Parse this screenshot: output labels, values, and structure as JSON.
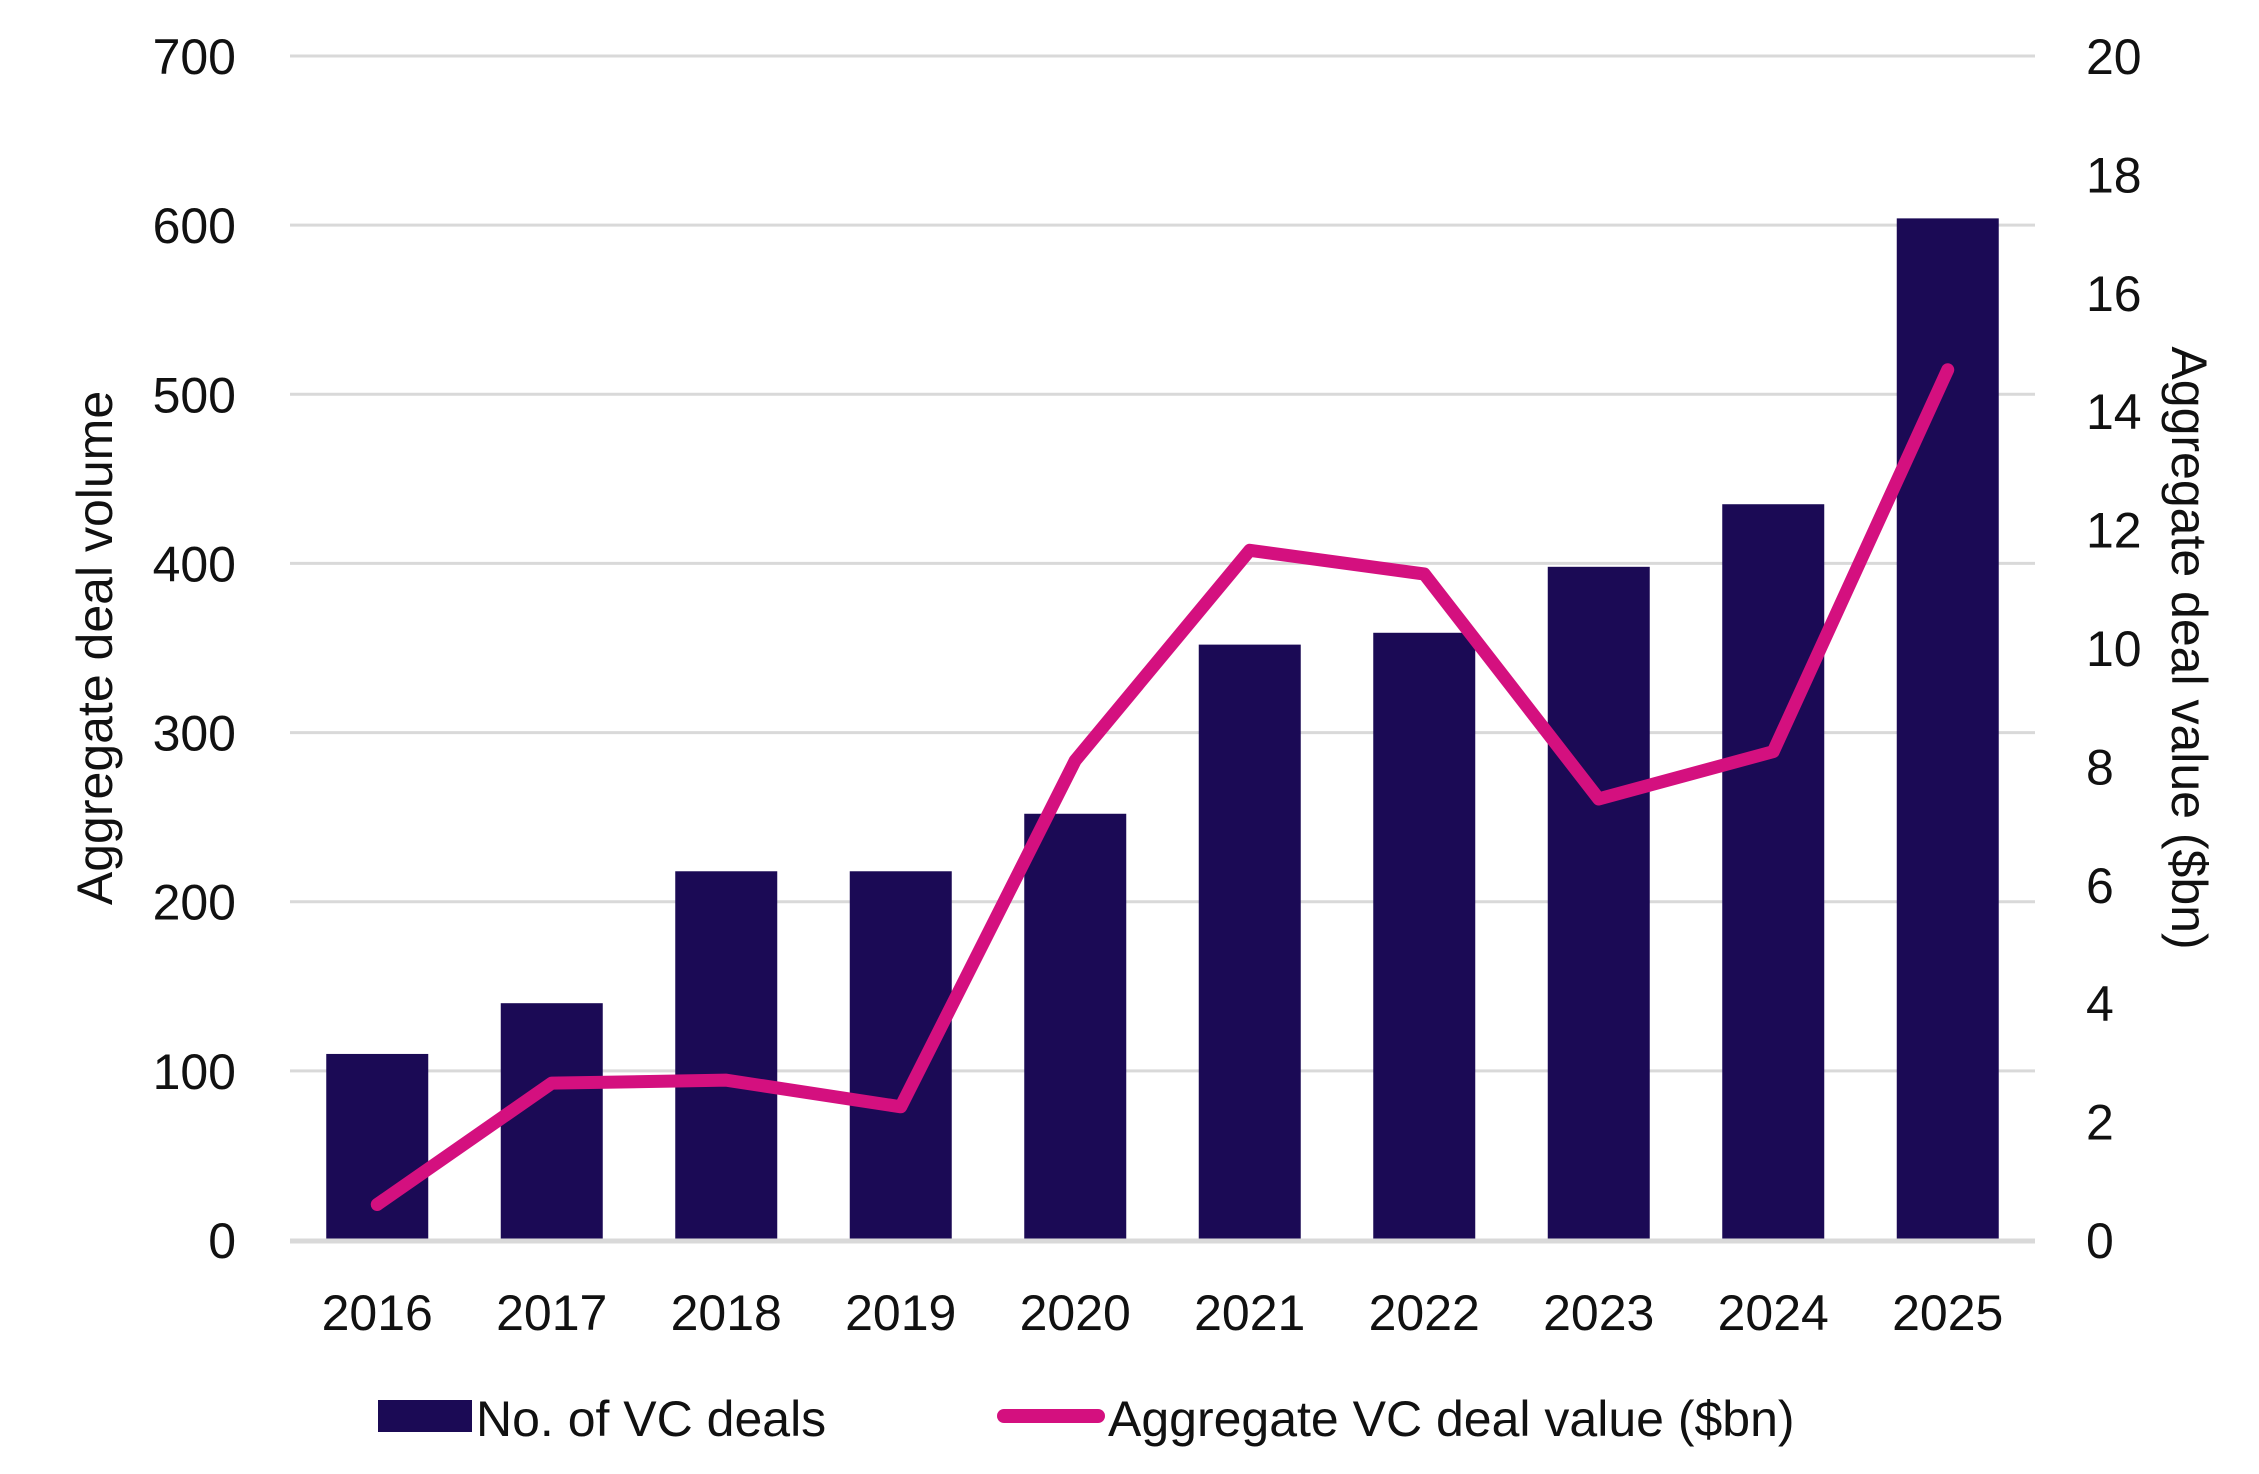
{
  "chart_data": {
    "type": "bar",
    "categories": [
      "2016",
      "2017",
      "2018",
      "2019",
      "2020",
      "2021",
      "2022",
      "2023",
      "2024",
      "2025"
    ],
    "series": [
      {
        "name": "No. of VC deals",
        "type": "bar",
        "axis": "left",
        "values": [
          110,
          140,
          218,
          218,
          252,
          352,
          359,
          398,
          435,
          604
        ]
      },
      {
        "name": "Aggregate VC deal value ($bn)",
        "type": "line",
        "axis": "right",
        "values": [
          0.6,
          2.65,
          2.7,
          2.25,
          8.1,
          11.65,
          11.25,
          7.45,
          8.25,
          14.7
        ]
      }
    ],
    "ylabel": "Aggregate deal volume",
    "ylabel_right": "Aggregate deal value ($bn)",
    "xlabel": "",
    "ylim": [
      0,
      700
    ],
    "yticks": [
      0,
      100,
      200,
      300,
      400,
      500,
      600,
      700
    ],
    "ylim_right": [
      0,
      20
    ],
    "yticks_right": [
      0,
      2,
      4,
      6,
      8,
      10,
      12,
      14,
      16,
      18,
      20
    ],
    "grid": true,
    "legend_position": "bottom",
    "colors": {
      "bar": "#1b0a55",
      "line": "#d4107f",
      "grid": "#d9d9d9",
      "axis": "#d9d9d9",
      "text": "#111111"
    }
  }
}
